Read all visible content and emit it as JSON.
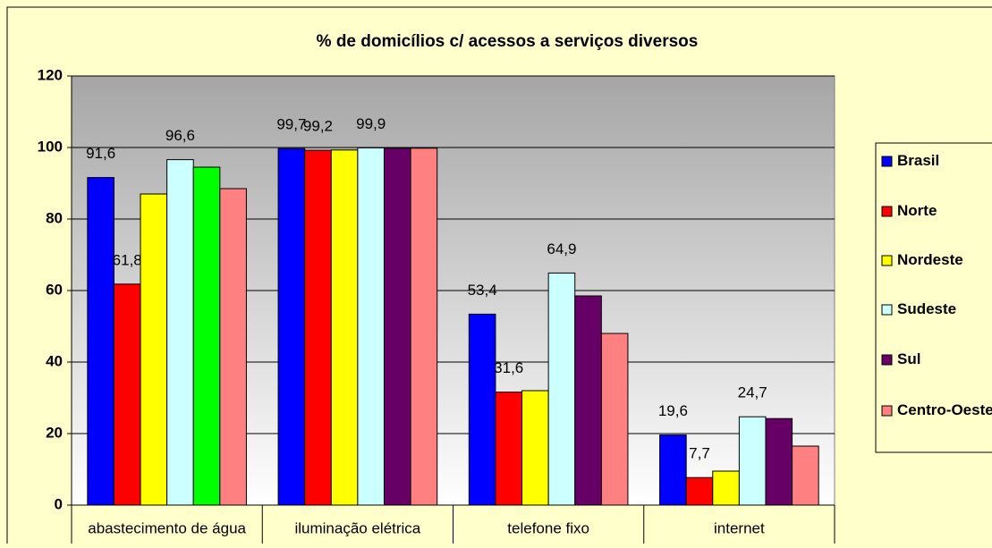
{
  "chart_data": {
    "type": "bar",
    "title": "% de domicílios c/ acessos a serviços diversos",
    "categories": [
      "abastecimento de água",
      "iluminação elétrica",
      "telefone fixo",
      "internet"
    ],
    "series": [
      {
        "name": "Brasil",
        "color": "#0000ff",
        "values": [
          91.6,
          99.7,
          53.4,
          19.6
        ],
        "value_labels": [
          "91,6",
          "99,7",
          "53,4",
          "19,6"
        ]
      },
      {
        "name": "Norte",
        "color": "#ff0000",
        "values": [
          61.8,
          99.2,
          31.6,
          7.7
        ],
        "value_labels": [
          "61,8",
          "99,2",
          "31,6",
          "7,7"
        ]
      },
      {
        "name": "Nordeste",
        "color": "#ffff00",
        "values": [
          87,
          99.3,
          32,
          9.5
        ]
      },
      {
        "name": "Sudeste",
        "color": "#ccffff",
        "values": [
          96.6,
          99.9,
          64.9,
          24.7
        ],
        "value_labels": [
          "96,6",
          "99,9",
          "64,9",
          "24,7"
        ]
      },
      {
        "name": "Sul",
        "color": "#660066",
        "colors": [
          "#00ff00",
          "#660066",
          "#660066",
          "#660066"
        ],
        "values": [
          94.5,
          99.8,
          58.5,
          24.2
        ]
      },
      {
        "name": "Centro-Oeste",
        "color": "#ff8080",
        "values": [
          88.5,
          99.8,
          48,
          16.5
        ]
      }
    ],
    "ylim": [
      0,
      120
    ],
    "yticks": [
      0,
      20,
      40,
      60,
      80,
      100,
      120
    ],
    "grid": true,
    "legend": "right"
  }
}
